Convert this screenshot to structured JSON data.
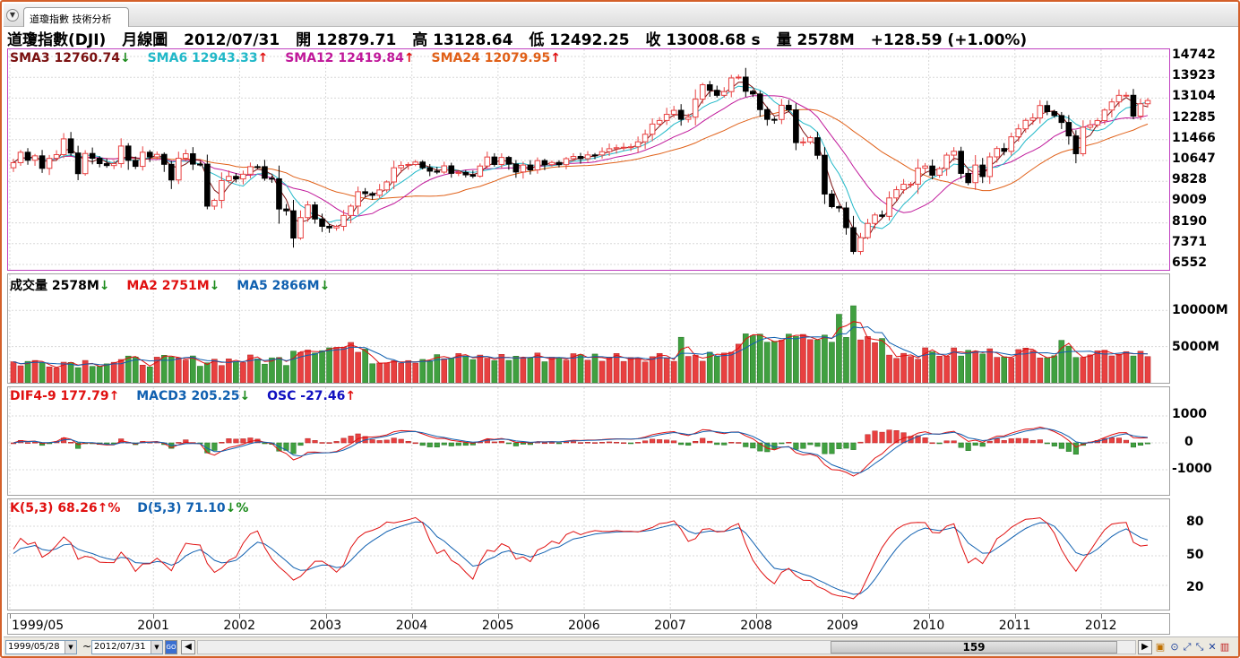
{
  "tab": {
    "label": "道瓊指數 技術分析"
  },
  "header": {
    "title": "道瓊指數(DJI)",
    "period": "月線圖",
    "date": "2012/07/31",
    "open": "開 12879.71",
    "high": "高 13128.64",
    "low": "低 12492.25",
    "close": "收 13008.68 s",
    "volume": "量 2578M",
    "change": "+128.59 (+1.00%)"
  },
  "price_panel": {
    "legend": [
      {
        "label": "SMA3 12760.74",
        "arrow": "↓",
        "color": "#7a1010"
      },
      {
        "label": "SMA6 12943.33",
        "arrow": "↑",
        "color": "#20b8c8"
      },
      {
        "label": "SMA12 12419.84",
        "arrow": "↑",
        "color": "#c0189a"
      },
      {
        "label": "SMA24 12079.95",
        "arrow": "↑",
        "color": "#e06018"
      }
    ],
    "yticks": [
      "14742",
      "13923",
      "13104",
      "12285",
      "11466",
      "10647",
      "9828",
      "9009",
      "8190",
      "7371",
      "6552"
    ]
  },
  "volume_panel": {
    "legend": [
      {
        "label": "成交量 2578M",
        "arrow": "↓",
        "color": "#000000"
      },
      {
        "label": "MA2 2751M",
        "arrow": "↓",
        "color": "#e01010"
      },
      {
        "label": "MA5 2866M",
        "arrow": "↓",
        "color": "#1060b0"
      }
    ],
    "yticks": [
      "10000M",
      "5000M"
    ]
  },
  "macd_panel": {
    "legend": [
      {
        "label": "DIF4-9 177.79",
        "arrow": "↑",
        "color": "#e01010"
      },
      {
        "label": "MACD3 205.25",
        "arrow": "↓",
        "color": "#1060b0"
      },
      {
        "label": "OSC -27.46",
        "arrow": "↑",
        "color": "#1010c0"
      }
    ],
    "yticks": [
      "1000",
      "0",
      "-1000"
    ]
  },
  "kd_panel": {
    "legend": [
      {
        "label": "K(5,3) 68.26",
        "arrow": "↑%",
        "color": "#e01010"
      },
      {
        "label": "D(5,3) 71.10",
        "arrow": "↓%",
        "color": "#1060b0"
      }
    ],
    "yticks": [
      "80",
      "50",
      "20"
    ]
  },
  "xaxis": {
    "labels": [
      "1999/05",
      "2001",
      "2002",
      "2003",
      "2004",
      "2005",
      "2006",
      "2007",
      "2008",
      "2009",
      "2010",
      "2011",
      "2012"
    ]
  },
  "toolbar": {
    "start_date": "1999/05/28",
    "tilde": "~",
    "end_date": "2012/07/31",
    "scroll_value": "159"
  },
  "colors": {
    "up": "#e84040",
    "down": "#000000",
    "vol_up": "#e84040",
    "vol_down": "#40a040",
    "frame": "#d4602a"
  },
  "chart_data": {
    "type": "candlestick",
    "period": "monthly",
    "first_month": "1999/05",
    "last_month": "2012/07",
    "price_axis": [
      6552,
      14742
    ],
    "close_series": [
      10560,
      10970,
      10655,
      10829,
      10337,
      10730,
      10877,
      11497,
      10940,
      10128,
      10922,
      10734,
      10522,
      10447,
      10522,
      11215,
      10651,
      10415,
      10971,
      10788,
      10887,
      10495,
      9879,
      10735,
      10912,
      10503,
      10502,
      8848,
      9075,
      9852,
      10021,
      9920,
      10106,
      10404,
      10403,
      9946,
      9925,
      8736,
      8664,
      7592,
      8397,
      8896,
      8342,
      8054,
      7992,
      8053,
      8480,
      8850,
      9415,
      9342,
      9275,
      9487,
      9801,
      10358,
      10454,
      10489,
      10584,
      10358,
      10226,
      10188,
      10435,
      10139,
      10173,
      10080,
      10027,
      10428,
      10783,
      10490,
      10766,
      10503,
      10193,
      10467,
      10275,
      10641,
      10482,
      10569,
      10481,
      10718,
      10805,
      10717,
      10865,
      10864,
      10993,
      11109,
      11150,
      11168,
      11186,
      11382,
      11680,
      12081,
      12221,
      12463,
      12622,
      12268,
      12354,
      13062,
      13628,
      13409,
      13212,
      13358,
      13896,
      13930,
      13372,
      13265,
      12650,
      12266,
      12263,
      12820,
      12638,
      11350,
      11378,
      11544,
      10851,
      9325,
      8829,
      8776,
      8001,
      7063,
      7609,
      8168,
      8500,
      8447,
      9171,
      9496,
      9712,
      9713,
      10344,
      10428,
      10067,
      10325,
      10857,
      11009,
      10137,
      9774,
      10466,
      10014,
      10788,
      11118,
      11006,
      11578,
      11892,
      12226,
      12320,
      12811,
      12570,
      12414,
      12143,
      11613,
      10913,
      11955,
      12046,
      12217,
      12632,
      12952,
      13212,
      13214,
      12393,
      12880,
      13009
    ]
  }
}
